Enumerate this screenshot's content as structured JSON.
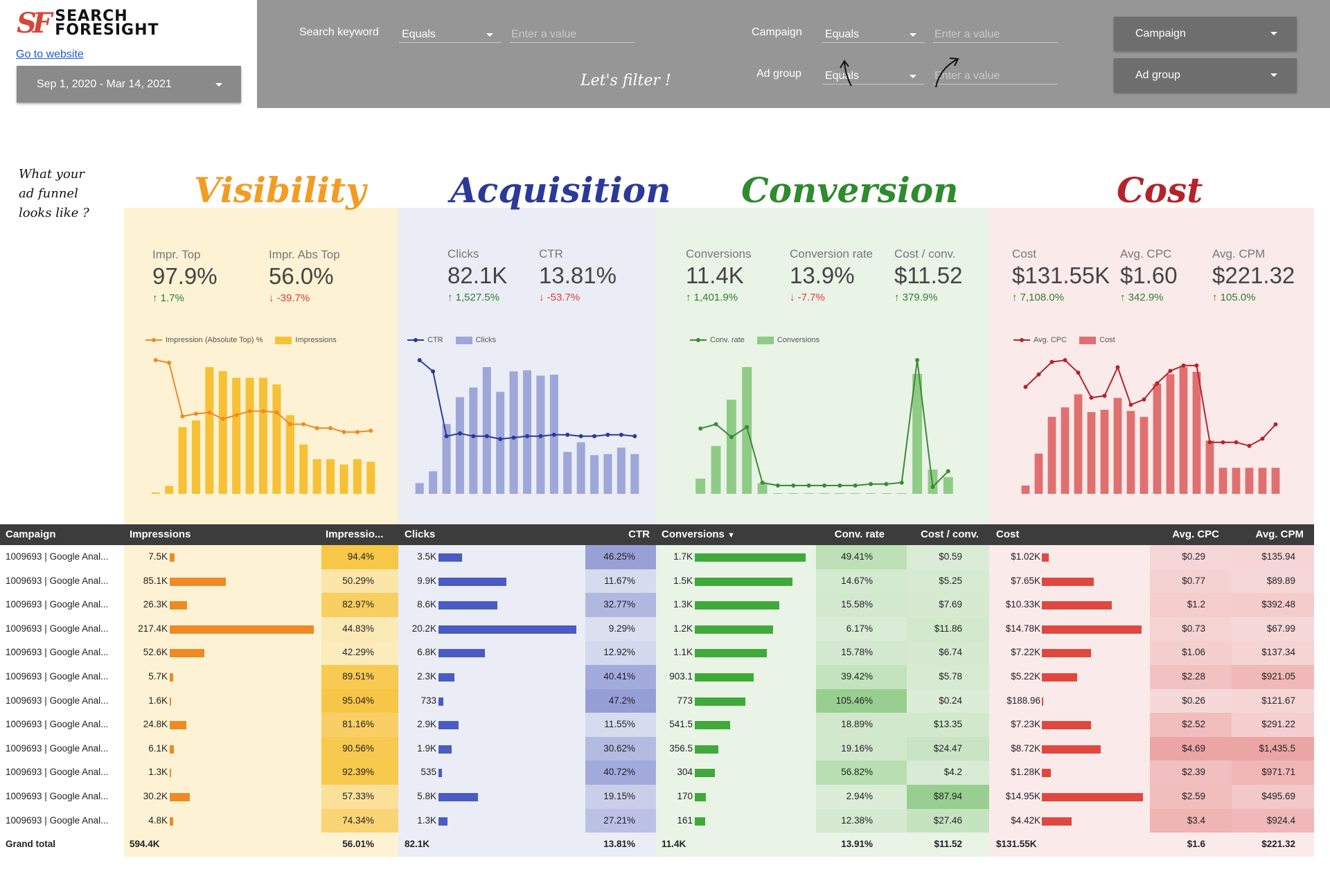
{
  "brand": {
    "logo_mark": "SF",
    "name_line1": "SEARCH",
    "name_line2": "FORESIGHT"
  },
  "go_to_website": "Go to website",
  "date_range": "Sep 1, 2020 - Mar 14, 2021",
  "filters": {
    "search_keyword": {
      "label": "Search keyword",
      "operator": "Equals",
      "placeholder": "Enter a value"
    },
    "campaign": {
      "label": "Campaign",
      "operator": "Equals",
      "placeholder": "Enter a value"
    },
    "ad_group": {
      "label": "Ad group",
      "operator": "Equals",
      "placeholder": "Enter a value"
    },
    "campaign_dropdown": "Campaign",
    "ad_group_dropdown": "Ad group",
    "handwritten": "Let's filter !"
  },
  "note": {
    "line1": "What your",
    "line2": "ad funnel",
    "line3": "looks like ?"
  },
  "sections": {
    "visibility": {
      "title": "Visibility",
      "color": "#f39c22"
    },
    "acquisition": {
      "title": "Acquisition",
      "color": "#2b3a98"
    },
    "conversion": {
      "title": "Conversion",
      "color": "#2e8b2e"
    },
    "cost": {
      "title": "Cost",
      "color": "#b3242a"
    }
  },
  "kpis": {
    "impr_top": {
      "label": "Impr. Top",
      "value": "97.9%",
      "change": "↑ 1.7%",
      "dir": "up"
    },
    "impr_abs_top": {
      "label": "Impr. Abs Top",
      "value": "56.0%",
      "change": "↓ -39.7%",
      "dir": "down"
    },
    "clicks": {
      "label": "Clicks",
      "value": "82.1K",
      "change": "↑ 1,527.5%",
      "dir": "up"
    },
    "ctr": {
      "label": "CTR",
      "value": "13.81%",
      "change": "↓ -53.7%",
      "dir": "down"
    },
    "conversions": {
      "label": "Conversions",
      "value": "11.4K",
      "change": "↑ 1,401.9%",
      "dir": "up"
    },
    "conv_rate": {
      "label": "Conversion rate",
      "value": "13.9%",
      "change": "↓ -7.7%",
      "dir": "down"
    },
    "cost_conv": {
      "label": "Cost / conv.",
      "value": "$11.52",
      "change": "↑ 379.9%",
      "dir": "up"
    },
    "cost": {
      "label": "Cost",
      "value": "$131.55K",
      "change": "↑ 7,108.0%",
      "dir": "up"
    },
    "avg_cpc": {
      "label": "Avg. CPC",
      "value": "$1.60",
      "change": "↑ 342.9%",
      "dir": "up"
    },
    "avg_cpm": {
      "label": "Avg. CPM",
      "value": "$221.32",
      "change": "↑ 105.0%",
      "dir": "up"
    }
  },
  "chart_data": [
    {
      "type": "bar",
      "id": "visibility",
      "legend": [
        "Impression (Absolute Top) %",
        "Impressions"
      ],
      "bar_color": "#f6c136",
      "line_color": "#ef8a24",
      "bars": [
        1,
        6,
        50,
        55,
        95,
        92,
        87,
        87,
        87,
        82,
        59,
        37,
        26,
        26,
        22,
        26,
        24
      ],
      "line": [
        97,
        95,
        54,
        56,
        57,
        52,
        55,
        58,
        58,
        57,
        48,
        48,
        45,
        45,
        42,
        42,
        43
      ]
    },
    {
      "type": "bar",
      "id": "acquisition",
      "legend": [
        "CTR",
        "Clicks"
      ],
      "bar_color": "#9ea7d8",
      "line_color": "#2b3a98",
      "bars": [
        10,
        21,
        65,
        90,
        99,
        118,
        95,
        114,
        115,
        110,
        111,
        39,
        48,
        36,
        37,
        43,
        37
      ],
      "line": [
        90,
        82,
        36,
        38,
        36,
        36,
        34,
        35,
        36,
        36,
        37,
        37,
        36,
        36,
        37,
        37,
        36
      ],
      "line_xs": [
        0,
        1,
        2,
        3,
        4,
        5,
        6,
        7,
        8,
        9,
        10,
        11,
        12,
        13,
        14,
        15,
        16
      ]
    },
    {
      "type": "bar",
      "id": "conversion",
      "legend": [
        "Conv. rate",
        "Conversions"
      ],
      "bar_color": "#8fcb86",
      "line_color": "#3b8a35",
      "bars": [
        20,
        63,
        124,
        167,
        14,
        0,
        0,
        0,
        0,
        0,
        0,
        0,
        0,
        0,
        158,
        32,
        22
      ],
      "line": [
        41,
        44,
        35,
        42,
        3,
        1,
        1,
        1,
        1,
        1,
        1,
        2,
        2,
        3,
        89,
        0,
        11
      ]
    },
    {
      "type": "bar",
      "id": "cost",
      "legend": [
        "Avg. CPC",
        "Cost"
      ],
      "bar_color": "#e07070",
      "line_color": "#b3242a",
      "bars": [
        7,
        34,
        65,
        73,
        84,
        69,
        71,
        81,
        70,
        65,
        93,
        101,
        107,
        103,
        45,
        22,
        22,
        22,
        22,
        22
      ],
      "line": [
        56,
        63,
        70,
        71,
        64,
        50,
        51,
        67,
        46,
        49,
        58,
        65,
        68,
        68,
        25,
        25,
        25,
        23,
        27,
        35
      ]
    }
  ],
  "table": {
    "columns": [
      "Campaign",
      "Impressions",
      "Impressio...",
      "Clicks",
      "CTR",
      "Conversions",
      "Conv. rate",
      "Cost / conv.",
      "Cost",
      "Avg. CPC",
      "Avg. CPM"
    ],
    "sort_indicator": "▼",
    "rows": [
      {
        "campaign": "1009693 | Google Anal...",
        "impressions": "7.5K",
        "impr_pct": "94.4%",
        "clicks": "3.5K",
        "ctr": "46.25%",
        "conversions": "1.7K",
        "conv_rate": "49.41%",
        "cost_conv": "$0.59",
        "cost": "$1.02K",
        "avg_cpc": "$0.29",
        "avg_cpm": "$135.94",
        "v_impr": 7.5,
        "v_clicks": 3.5,
        "v_conv": 1.7,
        "v_cost": 1.02,
        "s_impr": 94.4,
        "s_ctr": 46.25,
        "s_cr": 49.41,
        "s_cc": 0.59,
        "s_cpc": 0.29,
        "s_cpm": 135.94
      },
      {
        "campaign": "1009693 | Google Anal...",
        "impressions": "85.1K",
        "impr_pct": "50.29%",
        "clicks": "9.9K",
        "ctr": "11.67%",
        "conversions": "1.5K",
        "conv_rate": "14.67%",
        "cost_conv": "$5.25",
        "cost": "$7.65K",
        "avg_cpc": "$0.77",
        "avg_cpm": "$89.89",
        "v_impr": 85.1,
        "v_clicks": 9.9,
        "v_conv": 1.5,
        "v_cost": 7.65,
        "s_impr": 50.29,
        "s_ctr": 11.67,
        "s_cr": 14.67,
        "s_cc": 5.25,
        "s_cpc": 0.77,
        "s_cpm": 89.89
      },
      {
        "campaign": "1009693 | Google Anal...",
        "impressions": "26.3K",
        "impr_pct": "82.97%",
        "clicks": "8.6K",
        "ctr": "32.77%",
        "conversions": "1.3K",
        "conv_rate": "15.58%",
        "cost_conv": "$7.69",
        "cost": "$10.33K",
        "avg_cpc": "$1.2",
        "avg_cpm": "$392.48",
        "v_impr": 26.3,
        "v_clicks": 8.6,
        "v_conv": 1.3,
        "v_cost": 10.33,
        "s_impr": 82.97,
        "s_ctr": 32.77,
        "s_cr": 15.58,
        "s_cc": 7.69,
        "s_cpc": 1.2,
        "s_cpm": 392.48
      },
      {
        "campaign": "1009693 | Google Anal...",
        "impressions": "217.4K",
        "impr_pct": "44.83%",
        "clicks": "20.2K",
        "ctr": "9.29%",
        "conversions": "1.2K",
        "conv_rate": "6.17%",
        "cost_conv": "$11.86",
        "cost": "$14.78K",
        "avg_cpc": "$0.73",
        "avg_cpm": "$67.99",
        "v_impr": 217.4,
        "v_clicks": 20.2,
        "v_conv": 1.2,
        "v_cost": 14.78,
        "s_impr": 44.83,
        "s_ctr": 9.29,
        "s_cr": 6.17,
        "s_cc": 11.86,
        "s_cpc": 0.73,
        "s_cpm": 67.99
      },
      {
        "campaign": "1009693 | Google Anal...",
        "impressions": "52.6K",
        "impr_pct": "42.29%",
        "clicks": "6.8K",
        "ctr": "12.92%",
        "conversions": "1.1K",
        "conv_rate": "15.78%",
        "cost_conv": "$6.74",
        "cost": "$7.22K",
        "avg_cpc": "$1.06",
        "avg_cpm": "$137.34",
        "v_impr": 52.6,
        "v_clicks": 6.8,
        "v_conv": 1.1,
        "v_cost": 7.22,
        "s_impr": 42.29,
        "s_ctr": 12.92,
        "s_cr": 15.78,
        "s_cc": 6.74,
        "s_cpc": 1.06,
        "s_cpm": 137.34
      },
      {
        "campaign": "1009693 | Google Anal...",
        "impressions": "5.7K",
        "impr_pct": "89.51%",
        "clicks": "2.3K",
        "ctr": "40.41%",
        "conversions": "903.1",
        "conv_rate": "39.42%",
        "cost_conv": "$5.78",
        "cost": "$5.22K",
        "avg_cpc": "$2.28",
        "avg_cpm": "$921.05",
        "v_impr": 5.7,
        "v_clicks": 2.3,
        "v_conv": 0.9031,
        "v_cost": 5.22,
        "s_impr": 89.51,
        "s_ctr": 40.41,
        "s_cr": 39.42,
        "s_cc": 5.78,
        "s_cpc": 2.28,
        "s_cpm": 921.05
      },
      {
        "campaign": "1009693 | Google Anal...",
        "impressions": "1.6K",
        "impr_pct": "95.04%",
        "clicks": "733",
        "ctr": "47.2%",
        "conversions": "773",
        "conv_rate": "105.46%",
        "cost_conv": "$0.24",
        "cost": "$188.96",
        "avg_cpc": "$0.26",
        "avg_cpm": "$121.67",
        "v_impr": 1.6,
        "v_clicks": 0.733,
        "v_conv": 0.773,
        "v_cost": 0.18896,
        "s_impr": 95.04,
        "s_ctr": 47.2,
        "s_cr": 105.46,
        "s_cc": 0.24,
        "s_cpc": 0.26,
        "s_cpm": 121.67
      },
      {
        "campaign": "1009693 | Google Anal...",
        "impressions": "24.8K",
        "impr_pct": "81.16%",
        "clicks": "2.9K",
        "ctr": "11.55%",
        "conversions": "541.5",
        "conv_rate": "18.89%",
        "cost_conv": "$13.35",
        "cost": "$7.23K",
        "avg_cpc": "$2.52",
        "avg_cpm": "$291.22",
        "v_impr": 24.8,
        "v_clicks": 2.9,
        "v_conv": 0.5415,
        "v_cost": 7.23,
        "s_impr": 81.16,
        "s_ctr": 11.55,
        "s_cr": 18.89,
        "s_cc": 13.35,
        "s_cpc": 2.52,
        "s_cpm": 291.22
      },
      {
        "campaign": "1009693 | Google Anal...",
        "impressions": "6.1K",
        "impr_pct": "90.56%",
        "clicks": "1.9K",
        "ctr": "30.62%",
        "conversions": "356.5",
        "conv_rate": "19.16%",
        "cost_conv": "$24.47",
        "cost": "$8.72K",
        "avg_cpc": "$4.69",
        "avg_cpm": "$1,435.5",
        "v_impr": 6.1,
        "v_clicks": 1.9,
        "v_conv": 0.3565,
        "v_cost": 8.72,
        "s_impr": 90.56,
        "s_ctr": 30.62,
        "s_cr": 19.16,
        "s_cc": 24.47,
        "s_cpc": 4.69,
        "s_cpm": 1435.5
      },
      {
        "campaign": "1009693 | Google Anal...",
        "impressions": "1.3K",
        "impr_pct": "92.39%",
        "clicks": "535",
        "ctr": "40.72%",
        "conversions": "304",
        "conv_rate": "56.82%",
        "cost_conv": "$4.2",
        "cost": "$1.28K",
        "avg_cpc": "$2.39",
        "avg_cpm": "$971.71",
        "v_impr": 1.3,
        "v_clicks": 0.535,
        "v_conv": 0.304,
        "v_cost": 1.28,
        "s_impr": 92.39,
        "s_ctr": 40.72,
        "s_cr": 56.82,
        "s_cc": 4.2,
        "s_cpc": 2.39,
        "s_cpm": 971.71
      },
      {
        "campaign": "1009693 | Google Anal...",
        "impressions": "30.2K",
        "impr_pct": "57.33%",
        "clicks": "5.8K",
        "ctr": "19.15%",
        "conversions": "170",
        "conv_rate": "2.94%",
        "cost_conv": "$87.94",
        "cost": "$14.95K",
        "avg_cpc": "$2.59",
        "avg_cpm": "$495.69",
        "v_impr": 30.2,
        "v_clicks": 5.8,
        "v_conv": 0.17,
        "v_cost": 14.95,
        "s_impr": 57.33,
        "s_ctr": 19.15,
        "s_cr": 2.94,
        "s_cc": 87.94,
        "s_cpc": 2.59,
        "s_cpm": 495.69
      },
      {
        "campaign": "1009693 | Google Anal...",
        "impressions": "4.8K",
        "impr_pct": "74.34%",
        "clicks": "1.3K",
        "ctr": "27.21%",
        "conversions": "161",
        "conv_rate": "12.38%",
        "cost_conv": "$27.46",
        "cost": "$4.42K",
        "avg_cpc": "$3.4",
        "avg_cpm": "$924.4",
        "v_impr": 4.8,
        "v_clicks": 1.3,
        "v_conv": 0.161,
        "v_cost": 4.42,
        "s_impr": 74.34,
        "s_ctr": 27.21,
        "s_cr": 12.38,
        "s_cc": 27.46,
        "s_cpc": 3.4,
        "s_cpm": 924.4
      }
    ],
    "total": {
      "campaign": "Grand total",
      "impressions": "594.4K",
      "impr_pct": "56.01%",
      "clicks": "82.1K",
      "ctr": "13.81%",
      "conversions": "11.4K",
      "conv_rate": "13.91%",
      "cost_conv": "$11.52",
      "cost": "$131.55K",
      "avg_cpc": "$1.6",
      "avg_cpm": "$221.32"
    }
  }
}
